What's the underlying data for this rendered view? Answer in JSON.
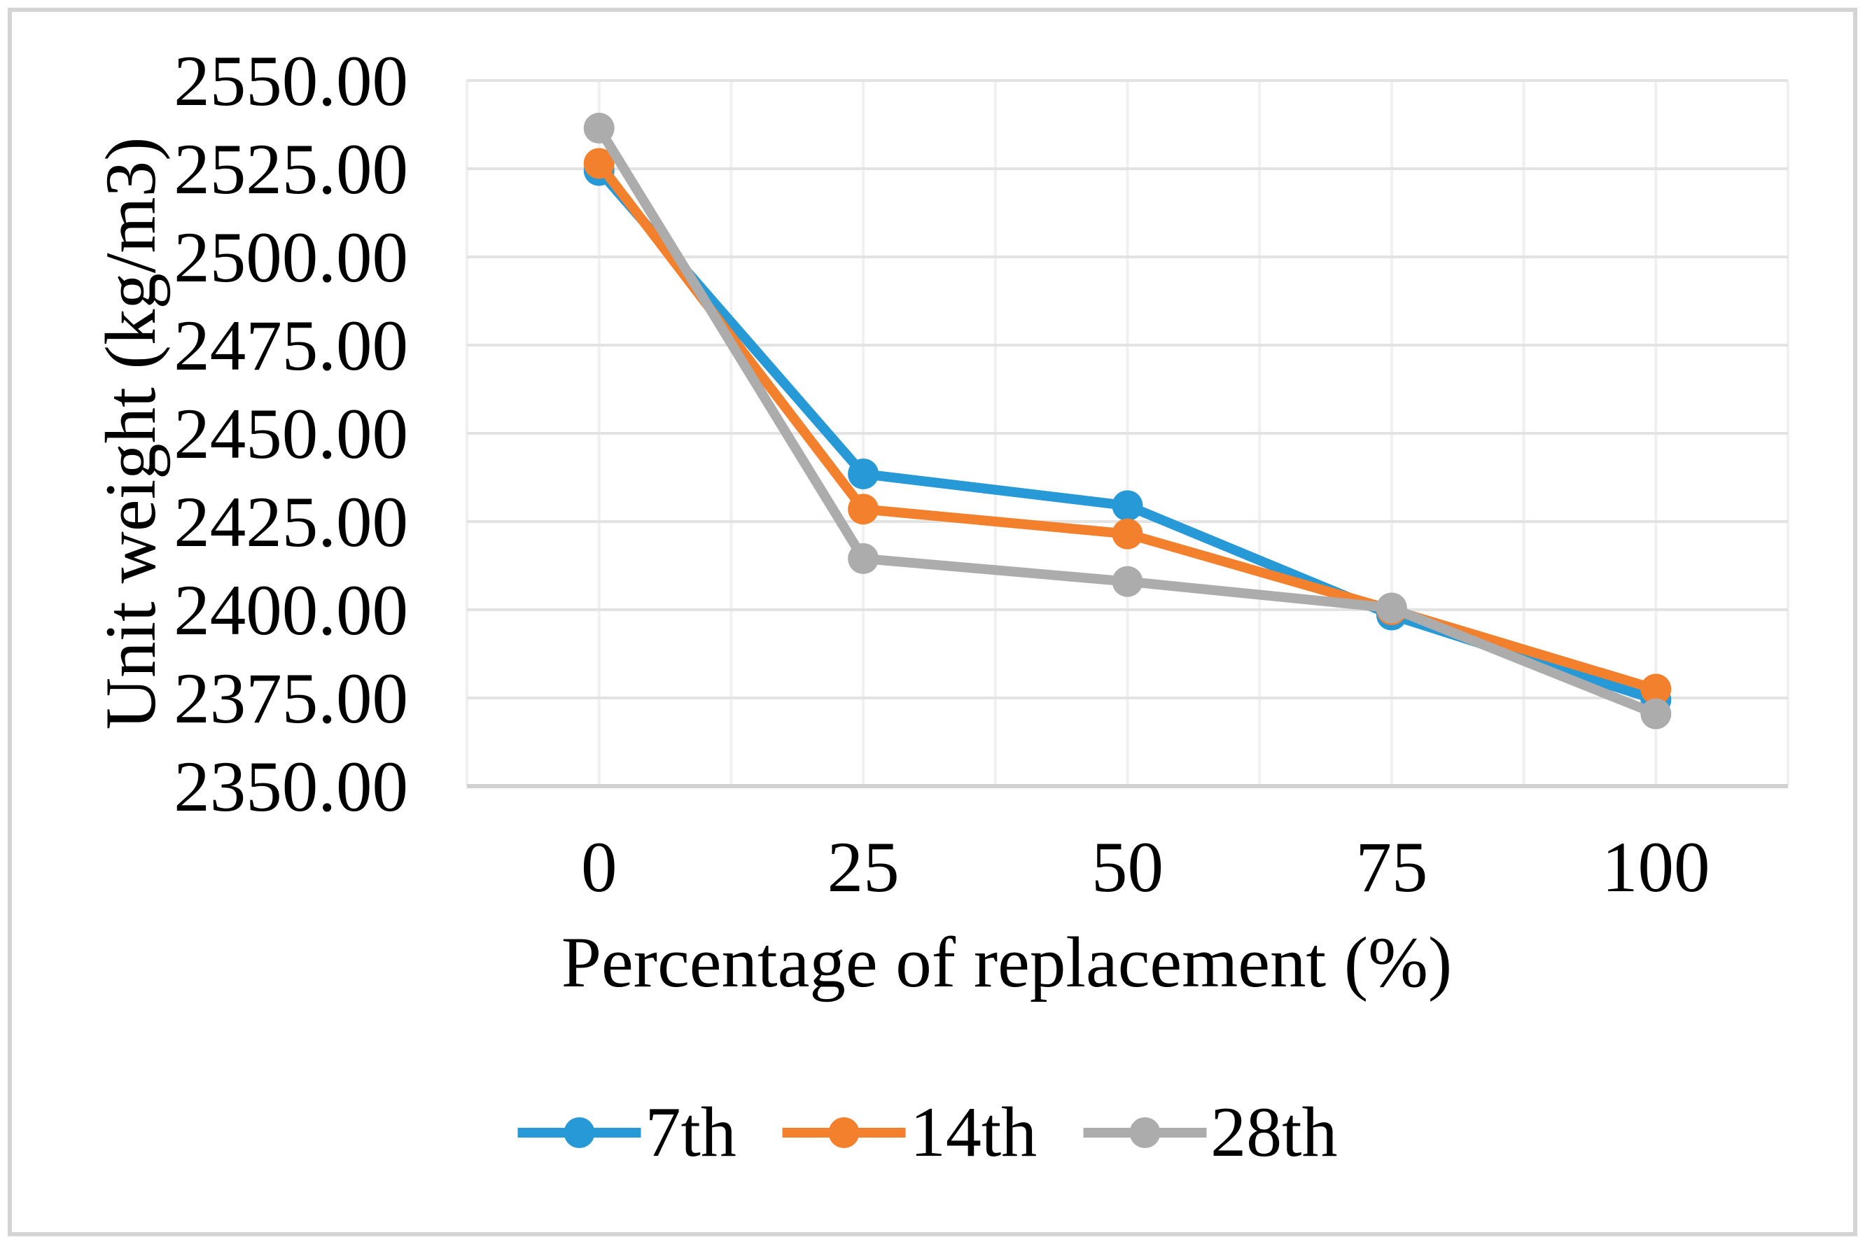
{
  "chart_data": {
    "type": "line",
    "title": "",
    "xlabel": "Percentage of replacement (%)",
    "ylabel": "Unit weight (kg/m3)",
    "categories": [
      "0",
      "25",
      "50",
      "75",
      "100"
    ],
    "x_numeric": [
      0,
      25,
      50,
      75,
      100
    ],
    "ylim": [
      2350,
      2550
    ],
    "y_ticks": [
      2350,
      2375,
      2400,
      2425,
      2450,
      2475,
      2500,
      2525,
      2550
    ],
    "y_tick_labels": [
      "2350.00",
      "2375.00",
      "2400.00",
      "2425.00",
      "2450.00",
      "2475.00",
      "2500.00",
      "2525.00",
      "2550.00"
    ],
    "grid": true,
    "legend_position": "bottom-center",
    "marker": "circle",
    "series": [
      {
        "name": "7th",
        "color": "#2799D6",
        "values": [
          2524.5,
          2438.5,
          2429.5,
          2398.5,
          2374.5
        ]
      },
      {
        "name": "14th",
        "color": "#F3802C",
        "values": [
          2526.5,
          2428.5,
          2421.5,
          2400.0,
          2377.5
        ]
      },
      {
        "name": "28th",
        "color": "#ACACAC",
        "values": [
          2536.5,
          2414.5,
          2408.0,
          2400.5,
          2370.5
        ]
      }
    ]
  },
  "styles": {
    "background": "#FFFFFF",
    "frame_border": "#D4D4D4",
    "gridline_horizontal": "#E3E3E3",
    "gridline_vertical": "#F0F0F0",
    "axis_line": "#D1D1D1",
    "text_color": "#000000"
  }
}
